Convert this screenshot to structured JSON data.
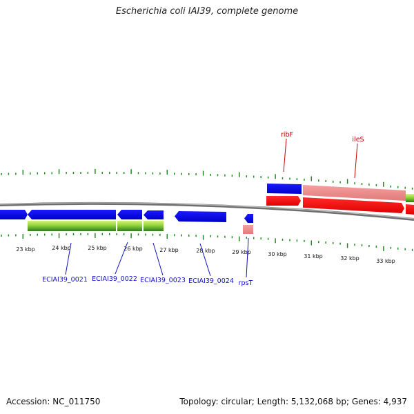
{
  "title": "Escherichia coli IAI39, complete genome",
  "footer": {
    "accession": "Accession: NC_011750",
    "stats": "Topology: circular; Length: 5,132,068 bp; Genes: 4,937"
  },
  "colors": {
    "backbone": "#7a7a7a",
    "tick": "#1f8a1f",
    "cds": "#0000e0",
    "rna": "#ff1a1a",
    "rna_light": "#f08c8c",
    "gene_light": "#9bd84a",
    "gene_dark": "#2e7d1e",
    "locus_label": "#1010c0",
    "rna_label": "#c00000"
  },
  "scale_labels": [
    "23 kbp",
    "24 kbp",
    "25 kbp",
    "26 kbp",
    "27 kbp",
    "28 kbp",
    "29 kbp",
    "30 kbp",
    "31 kbp",
    "32 kbp",
    "33 kbp"
  ],
  "feature_labels": {
    "below": [
      "ECIAI39_0021",
      "ECIAI39_0022",
      "ECIAI39_0023",
      "ECIAI39_0024",
      "rpsT"
    ],
    "above": [
      "ribF",
      "ileS"
    ]
  }
}
